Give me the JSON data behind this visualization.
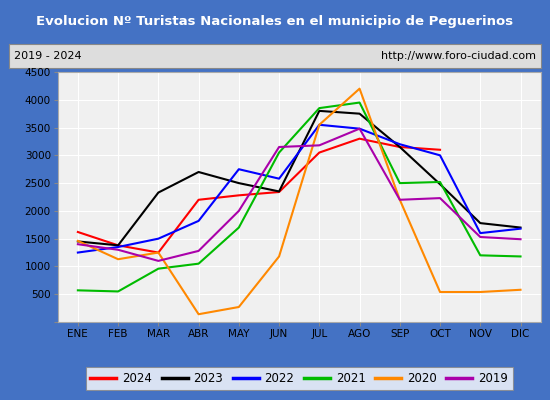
{
  "title": "Evolucion Nº Turistas Nacionales en el municipio de Peguerinos",
  "subtitle_left": "2019 - 2024",
  "subtitle_right": "http://www.foro-ciudad.com",
  "months": [
    "ENE",
    "FEB",
    "MAR",
    "ABR",
    "MAY",
    "JUN",
    "JUL",
    "AGO",
    "SEP",
    "OCT",
    "NOV",
    "DIC"
  ],
  "ylim": [
    0,
    4500
  ],
  "yticks": [
    0,
    500,
    1000,
    1500,
    2000,
    2500,
    3000,
    3500,
    4000,
    4500
  ],
  "series": {
    "2024": {
      "color": "#ff0000",
      "data": [
        1620,
        1380,
        1250,
        2200,
        2280,
        2340,
        3050,
        3300,
        3150,
        3100,
        null,
        null
      ]
    },
    "2023": {
      "color": "#000000",
      "data": [
        1450,
        1380,
        2330,
        2700,
        2500,
        2350,
        3800,
        3750,
        3150,
        2480,
        1780,
        1700
      ]
    },
    "2022": {
      "color": "#0000ff",
      "data": [
        1250,
        1350,
        1500,
        1820,
        2750,
        2580,
        3550,
        3480,
        3200,
        3000,
        1600,
        1680
      ]
    },
    "2021": {
      "color": "#00bb00",
      "data": [
        570,
        550,
        960,
        1050,
        1700,
        3050,
        3850,
        3950,
        2500,
        2520,
        1200,
        1180
      ]
    },
    "2020": {
      "color": "#ff8800",
      "data": [
        1460,
        1130,
        1250,
        140,
        270,
        1180,
        3550,
        4200,
        2200,
        540,
        540,
        580
      ]
    },
    "2019": {
      "color": "#aa00aa",
      "data": [
        1400,
        1300,
        1100,
        1280,
        2000,
        3150,
        3180,
        3480,
        2200,
        2230,
        1530,
        1490
      ]
    }
  },
  "legend_order": [
    "2024",
    "2023",
    "2022",
    "2021",
    "2020",
    "2019"
  ],
  "title_bg_color": "#4472c4",
  "title_fg_color": "#ffffff",
  "plot_bg_color": "#f0f0f0",
  "grid_color": "#ffffff",
  "border_color": "#4472c4"
}
